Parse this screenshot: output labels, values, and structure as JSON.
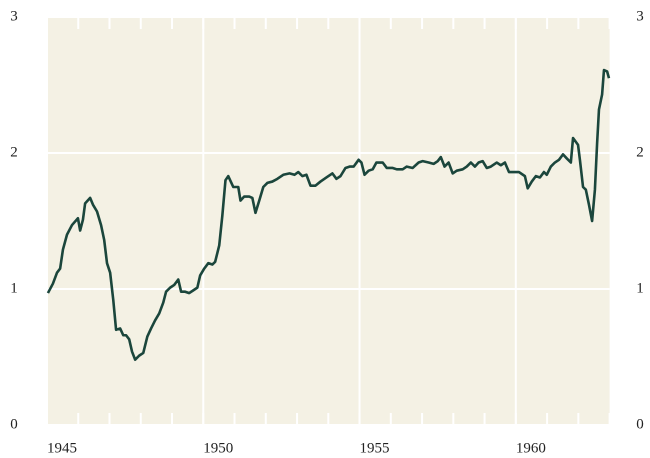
{
  "chart_data": {
    "type": "line",
    "x": [
      1945.03,
      1945.19,
      1945.32,
      1945.42,
      1945.51,
      1945.64,
      1945.8,
      1945.99,
      1946.06,
      1946.15,
      1946.22,
      1946.38,
      1946.47,
      1946.6,
      1946.73,
      1946.83,
      1946.92,
      1947.02,
      1947.12,
      1947.21,
      1947.34,
      1947.44,
      1947.53,
      1947.63,
      1947.72,
      1947.82,
      1947.95,
      1948.08,
      1948.21,
      1948.33,
      1948.46,
      1948.59,
      1948.72,
      1948.81,
      1948.94,
      1949.07,
      1949.2,
      1949.29,
      1949.42,
      1949.55,
      1949.68,
      1949.81,
      1949.9,
      1950.03,
      1950.16,
      1950.29,
      1950.38,
      1950.51,
      1950.61,
      1950.71,
      1950.8,
      1950.9,
      1950.96,
      1951.12,
      1951.19,
      1951.31,
      1951.47,
      1951.57,
      1951.67,
      1951.79,
      1951.92,
      1952.05,
      1952.21,
      1952.37,
      1952.56,
      1952.76,
      1952.92,
      1953.04,
      1953.17,
      1953.3,
      1953.43,
      1953.59,
      1953.75,
      1953.94,
      1954.13,
      1954.26,
      1954.39,
      1954.55,
      1954.68,
      1954.81,
      1954.97,
      1955.06,
      1955.16,
      1955.29,
      1955.42,
      1955.54,
      1955.74,
      1955.87,
      1956.06,
      1956.19,
      1956.38,
      1956.51,
      1956.7,
      1956.89,
      1957.02,
      1957.21,
      1957.37,
      1957.5,
      1957.6,
      1957.72,
      1957.85,
      1957.98,
      1958.11,
      1958.3,
      1958.43,
      1958.56,
      1958.69,
      1958.81,
      1958.94,
      1959.07,
      1959.2,
      1959.39,
      1959.52,
      1959.65,
      1959.78,
      1959.9,
      1960.1,
      1960.29,
      1960.38,
      1960.51,
      1960.64,
      1960.77,
      1960.9,
      1960.99,
      1961.12,
      1961.25,
      1961.38,
      1961.51,
      1961.63,
      1961.76,
      1961.83,
      1961.99,
      1962.05,
      1962.15,
      1962.24,
      1962.34,
      1962.44,
      1962.53,
      1962.6,
      1962.66,
      1962.76,
      1962.82,
      1962.92,
      1962.98
    ],
    "series": [
      {
        "color": "#1b463c",
        "values": [
          0.97,
          1.04,
          1.12,
          1.15,
          1.29,
          1.4,
          1.47,
          1.52,
          1.43,
          1.51,
          1.63,
          1.67,
          1.62,
          1.57,
          1.47,
          1.36,
          1.19,
          1.12,
          0.92,
          0.7,
          0.71,
          0.66,
          0.66,
          0.63,
          0.54,
          0.48,
          0.51,
          0.53,
          0.65,
          0.71,
          0.77,
          0.82,
          0.9,
          0.98,
          1.01,
          1.03,
          1.07,
          0.98,
          0.98,
          0.97,
          0.99,
          1.01,
          1.1,
          1.15,
          1.19,
          1.18,
          1.2,
          1.32,
          1.54,
          1.8,
          1.83,
          1.78,
          1.75,
          1.75,
          1.65,
          1.68,
          1.68,
          1.67,
          1.56,
          1.65,
          1.75,
          1.78,
          1.79,
          1.81,
          1.84,
          1.85,
          1.84,
          1.86,
          1.83,
          1.84,
          1.76,
          1.76,
          1.79,
          1.82,
          1.85,
          1.81,
          1.83,
          1.89,
          1.9,
          1.9,
          1.95,
          1.93,
          1.84,
          1.87,
          1.88,
          1.93,
          1.93,
          1.89,
          1.89,
          1.88,
          1.88,
          1.9,
          1.89,
          1.93,
          1.94,
          1.93,
          1.92,
          1.94,
          1.97,
          1.9,
          1.93,
          1.85,
          1.87,
          1.88,
          1.9,
          1.93,
          1.9,
          1.93,
          1.94,
          1.89,
          1.9,
          1.93,
          1.91,
          1.93,
          1.86,
          1.86,
          1.86,
          1.83,
          1.74,
          1.79,
          1.83,
          1.82,
          1.86,
          1.84,
          1.9,
          1.93,
          1.95,
          1.99,
          1.96,
          1.93,
          2.11,
          2.06,
          1.95,
          1.75,
          1.73,
          1.62,
          1.5,
          1.73,
          2.07,
          2.32,
          2.43,
          2.61,
          2.6,
          2.55
        ]
      }
    ],
    "xlim": [
      1945,
      1963
    ],
    "xticks": [
      1945,
      1950,
      1955,
      1960
    ],
    "ylim": [
      0,
      3
    ],
    "yticks": [
      0,
      1,
      2,
      3
    ],
    "grid": true
  }
}
